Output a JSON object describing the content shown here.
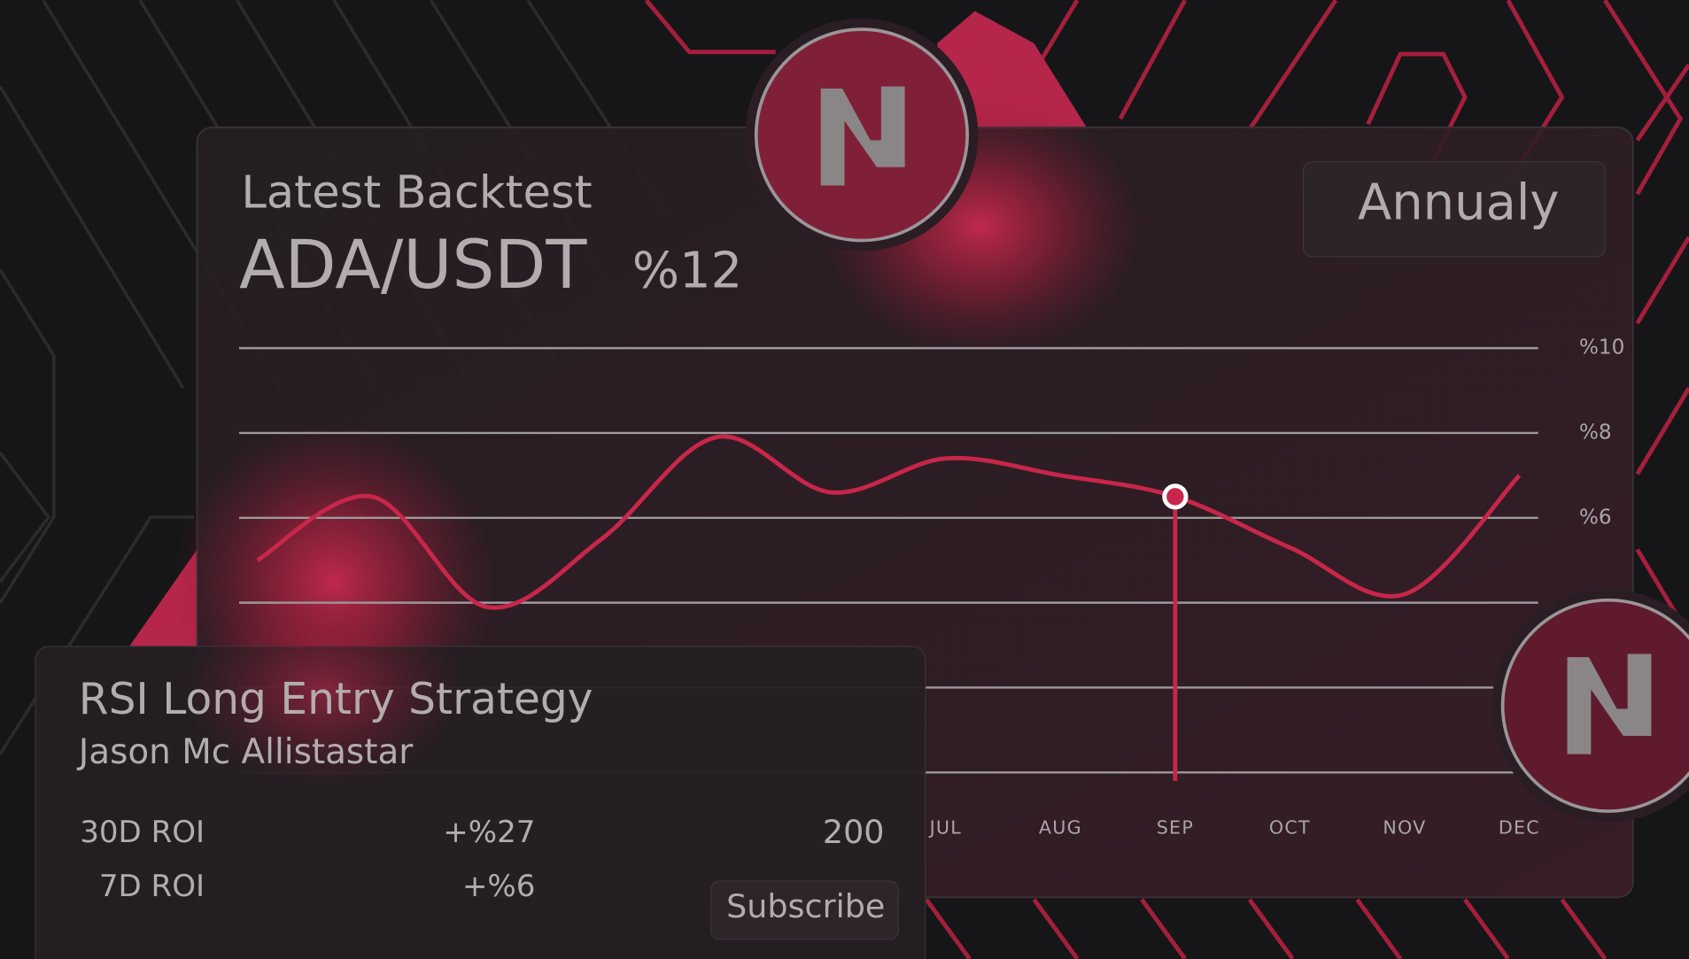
{
  "header": {
    "title": "Latest Backtest",
    "pair": "ADA/USDT",
    "return": "%12",
    "period": "Annualy"
  },
  "chart_data": {
    "type": "line",
    "categories": [
      null,
      null,
      null,
      null,
      null,
      null,
      "JUL",
      "AUG",
      "SEP",
      "OCT",
      "NOV",
      "DEC"
    ],
    "values": [
      5.0,
      6.5,
      3.9,
      5.5,
      7.9,
      6.6,
      7.4,
      7.0,
      6.5,
      5.3,
      4.2,
      7.0
    ],
    "color": "#c8264a",
    "highlight_index": 8,
    "ylim": [
      0,
      10
    ],
    "yticks": [
      {
        "value": 10,
        "label": "%10"
      },
      {
        "value": 8,
        "label": "%8"
      },
      {
        "value": 6,
        "label": "%6"
      },
      {
        "value": 4,
        "label": null
      },
      {
        "value": 2,
        "label": null
      },
      {
        "value": 0,
        "label": null
      }
    ],
    "grid": true
  },
  "strategy_card": {
    "title": "RSI Long Entry Strategy",
    "author": "Jason Mc Allistastar",
    "stats": [
      {
        "label": "30D ROI",
        "value": "+%27"
      },
      {
        "label": "7D ROI",
        "value": "+%6"
      }
    ],
    "subscribers": "200",
    "button": "Subscribe"
  }
}
